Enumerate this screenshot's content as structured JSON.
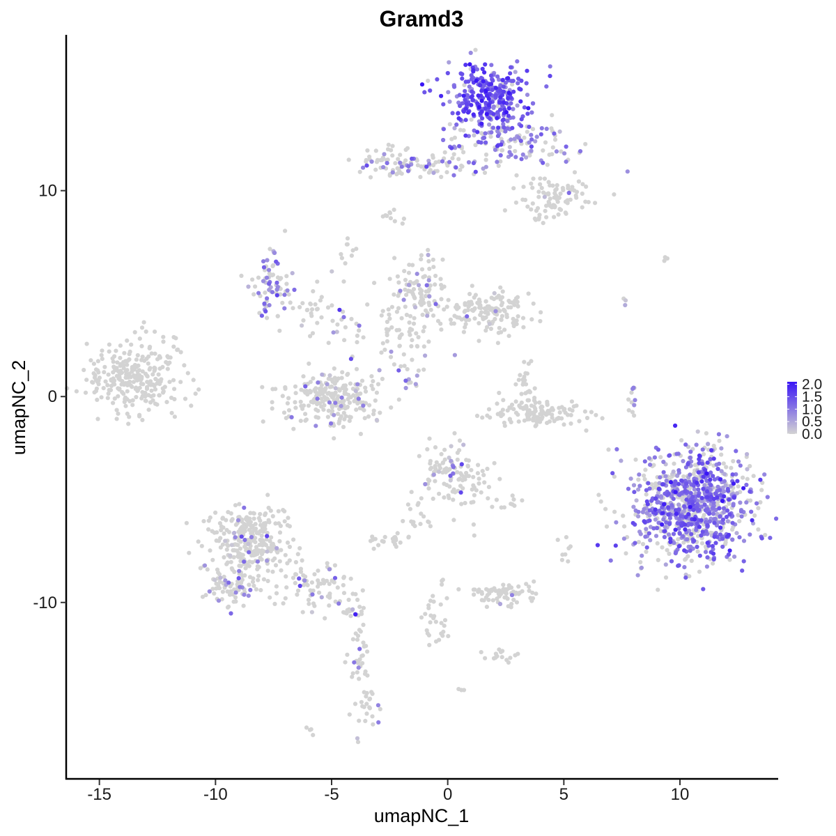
{
  "chart_data": {
    "type": "scatter",
    "title": "Gramd3",
    "xlabel": "umapNC_1",
    "ylabel": "umapNC_2",
    "xlim": [
      -16.4,
      14.2
    ],
    "ylim": [
      -18.5,
      17.5
    ],
    "x_ticks": [
      -15,
      -10,
      -5,
      0,
      5,
      10
    ],
    "y_ticks": [
      -10,
      0,
      10
    ],
    "x_tick_labels": [
      "-15",
      "-10",
      "-5",
      "0",
      "5",
      "10"
    ],
    "y_tick_labels": [
      "-10",
      "0",
      "10"
    ],
    "grid": false,
    "legend": {
      "placement": "right",
      "type": "colorbar",
      "low_color": "#d3d3d3",
      "high_color": "#3a16f5",
      "range": [
        0,
        2.1
      ],
      "ticks": [
        2.0,
        1.5,
        1.0,
        0.5,
        0.0
      ],
      "tick_labels": [
        "2.0",
        "1.5",
        "1.0",
        "0.5",
        "0.0"
      ]
    },
    "point_color_low": "#d3d3d3",
    "point_color_high": "#3a16f5",
    "clusters": [
      {
        "cx": -13.5,
        "cy": 1.0,
        "sx": 1.0,
        "sy": 0.9,
        "n": 260,
        "expr_frac": 0.0,
        "expr_mean": 0.0
      },
      {
        "cx": -11.8,
        "cy": 2.2,
        "sx": 0.3,
        "sy": 0.4,
        "n": 10,
        "expr_frac": 0.0,
        "expr_mean": 0.0
      },
      {
        "cx": 1.7,
        "cy": 14.5,
        "sx": 0.9,
        "sy": 0.8,
        "n": 300,
        "expr_frac": 0.9,
        "expr_mean": 1.35
      },
      {
        "cx": 2.6,
        "cy": 12.4,
        "sx": 1.5,
        "sy": 0.6,
        "n": 140,
        "expr_frac": 0.55,
        "expr_mean": 1.0
      },
      {
        "cx": -1.0,
        "cy": 11.2,
        "sx": 1.6,
        "sy": 0.3,
        "n": 70,
        "expr_frac": 0.35,
        "expr_mean": 1.0
      },
      {
        "cx": -2.3,
        "cy": 11.6,
        "sx": 0.5,
        "sy": 0.4,
        "n": 30,
        "expr_frac": 0.1,
        "expr_mean": 0.7
      },
      {
        "cx": 4.6,
        "cy": 9.6,
        "sx": 0.8,
        "sy": 0.5,
        "n": 90,
        "expr_frac": 0.05,
        "expr_mean": 0.7
      },
      {
        "cx": -2.7,
        "cy": 8.8,
        "sx": 0.2,
        "sy": 0.2,
        "n": 8,
        "expr_frac": 0.0,
        "expr_mean": 0.0
      },
      {
        "cx": -7.6,
        "cy": 5.3,
        "sx": 0.5,
        "sy": 0.7,
        "n": 70,
        "expr_frac": 0.55,
        "expr_mean": 0.8
      },
      {
        "cx": -5.2,
        "cy": 4.0,
        "sx": 1.2,
        "sy": 0.6,
        "n": 50,
        "expr_frac": 0.15,
        "expr_mean": 0.8
      },
      {
        "cx": -4.4,
        "cy": 7.0,
        "sx": 0.2,
        "sy": 0.5,
        "n": 10,
        "expr_frac": 0.3,
        "expr_mean": 0.7
      },
      {
        "cx": -1.2,
        "cy": 5.2,
        "sx": 0.6,
        "sy": 0.8,
        "n": 90,
        "expr_frac": 0.15,
        "expr_mean": 0.8
      },
      {
        "cx": 1.7,
        "cy": 4.1,
        "sx": 0.9,
        "sy": 0.5,
        "n": 140,
        "expr_frac": 0.05,
        "expr_mean": 0.7
      },
      {
        "cx": -2.1,
        "cy": 2.9,
        "sx": 1.0,
        "sy": 0.8,
        "n": 55,
        "expr_frac": 0.1,
        "expr_mean": 0.8
      },
      {
        "cx": -1.5,
        "cy": 1.2,
        "sx": 0.4,
        "sy": 0.5,
        "n": 15,
        "expr_frac": 0.3,
        "expr_mean": 0.8
      },
      {
        "cx": -5.0,
        "cy": 0.0,
        "sx": 1.1,
        "sy": 0.7,
        "n": 230,
        "expr_frac": 0.07,
        "expr_mean": 0.8
      },
      {
        "cx": 3.4,
        "cy": 0.8,
        "sx": 0.3,
        "sy": 0.6,
        "n": 25,
        "expr_frac": 0.0,
        "expr_mean": 0.0
      },
      {
        "cx": 3.8,
        "cy": -0.8,
        "sx": 1.1,
        "sy": 0.3,
        "n": 130,
        "expr_frac": 0.0,
        "expr_mean": 0.0
      },
      {
        "cx": 0.0,
        "cy": -3.6,
        "sx": 0.7,
        "sy": 0.6,
        "n": 90,
        "expr_frac": 0.2,
        "expr_mean": 0.8
      },
      {
        "cx": 0.9,
        "cy": -4.6,
        "sx": 0.6,
        "sy": 0.8,
        "n": 30,
        "expr_frac": 0.1,
        "expr_mean": 0.8
      },
      {
        "cx": -2.5,
        "cy": -7.0,
        "sx": 0.5,
        "sy": 0.2,
        "n": 22,
        "expr_frac": 0.15,
        "expr_mean": 0.8
      },
      {
        "cx": -1.4,
        "cy": -5.8,
        "sx": 0.4,
        "sy": 0.5,
        "n": 18,
        "expr_frac": 0.0,
        "expr_mean": 0.0
      },
      {
        "cx": 3.0,
        "cy": -5.1,
        "sx": 0.4,
        "sy": 0.2,
        "n": 8,
        "expr_frac": 0.0,
        "expr_mean": 0.0
      },
      {
        "cx": 2.4,
        "cy": -9.6,
        "sx": 0.7,
        "sy": 0.3,
        "n": 70,
        "expr_frac": 0.03,
        "expr_mean": 0.7
      },
      {
        "cx": 2.3,
        "cy": -12.6,
        "sx": 0.3,
        "sy": 0.2,
        "n": 15,
        "expr_frac": 0.0,
        "expr_mean": 0.0
      },
      {
        "cx": -0.5,
        "cy": -11.0,
        "sx": 0.3,
        "sy": 0.9,
        "n": 30,
        "expr_frac": 0.15,
        "expr_mean": 0.8
      },
      {
        "cx": -8.5,
        "cy": -7.2,
        "sx": 0.8,
        "sy": 1.0,
        "n": 300,
        "expr_frac": 0.07,
        "expr_mean": 0.8
      },
      {
        "cx": -9.5,
        "cy": -9.3,
        "sx": 0.5,
        "sy": 0.4,
        "n": 50,
        "expr_frac": 0.2,
        "expr_mean": 0.8
      },
      {
        "cx": -6.0,
        "cy": -9.1,
        "sx": 0.9,
        "sy": 0.6,
        "n": 80,
        "expr_frac": 0.15,
        "expr_mean": 0.8
      },
      {
        "cx": -4.0,
        "cy": -10.4,
        "sx": 0.3,
        "sy": 0.2,
        "n": 15,
        "expr_frac": 0.4,
        "expr_mean": 0.9
      },
      {
        "cx": -3.8,
        "cy": -12.5,
        "sx": 0.25,
        "sy": 1.3,
        "n": 40,
        "expr_frac": 0.05,
        "expr_mean": 0.8
      },
      {
        "cx": -3.4,
        "cy": -15.0,
        "sx": 0.3,
        "sy": 0.4,
        "n": 20,
        "expr_frac": 0.05,
        "expr_mean": 0.8
      },
      {
        "cx": -6.0,
        "cy": -16.2,
        "sx": 0.1,
        "sy": 0.1,
        "n": 4,
        "expr_frac": 0.0,
        "expr_mean": 0.0
      },
      {
        "cx": 0.6,
        "cy": -14.2,
        "sx": 0.1,
        "sy": 0.1,
        "n": 3,
        "expr_frac": 0.0,
        "expr_mean": 0.0
      },
      {
        "cx": 10.5,
        "cy": -5.2,
        "sx": 1.25,
        "sy": 1.35,
        "n": 950,
        "expr_frac": 0.6,
        "expr_mean": 1.05
      },
      {
        "cx": 7.9,
        "cy": -0.3,
        "sx": 0.1,
        "sy": 0.5,
        "n": 10,
        "expr_frac": 0.4,
        "expr_mean": 0.8
      },
      {
        "cx": 5.1,
        "cy": -7.6,
        "sx": 0.15,
        "sy": 0.6,
        "n": 8,
        "expr_frac": 0.0,
        "expr_mean": 0.0
      },
      {
        "cx": 9.4,
        "cy": 6.7,
        "sx": 0.1,
        "sy": 0.1,
        "n": 3,
        "expr_frac": 0.0,
        "expr_mean": 0.0
      },
      {
        "cx": 7.6,
        "cy": 4.6,
        "sx": 0.15,
        "sy": 0.15,
        "n": 3,
        "expr_frac": 0.3,
        "expr_mean": 0.8
      },
      {
        "cx": -2.0,
        "cy": 8.5,
        "sx": 0.1,
        "sy": 0.1,
        "n": 2,
        "expr_frac": 0.0,
        "expr_mean": 0.0
      }
    ]
  }
}
